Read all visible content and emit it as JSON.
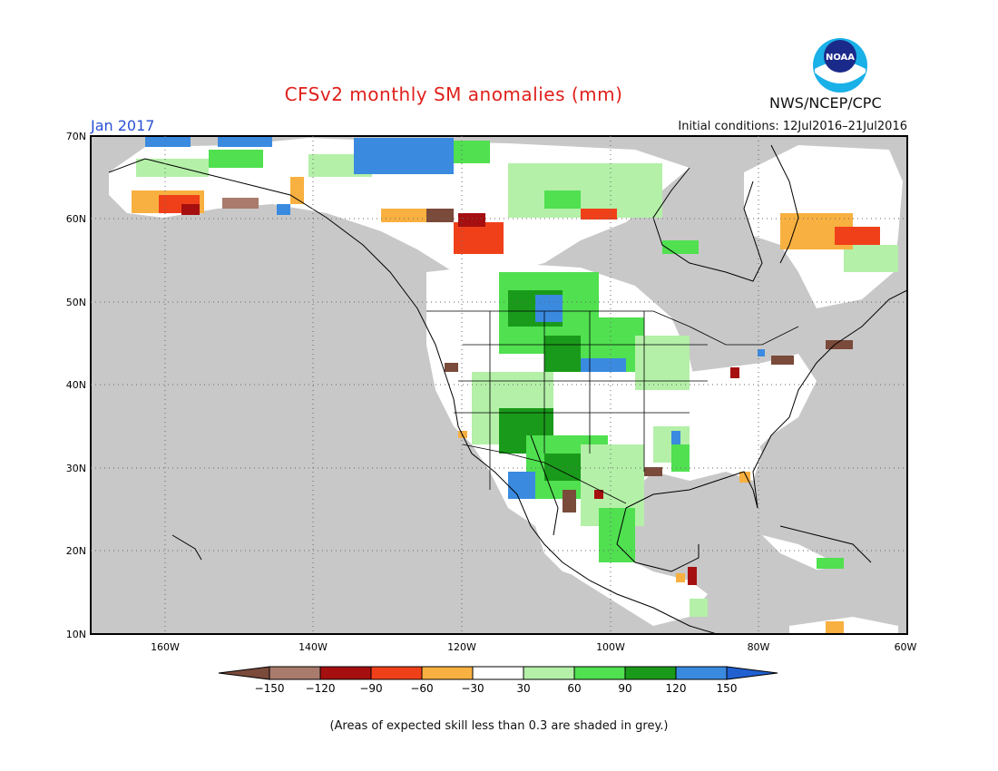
{
  "title": "CFSv2 monthly SM anomalies (mm)",
  "forecast_month": "Jan 2017",
  "initial_conditions": "Initial conditions: 12Jul2016–21Jul2016",
  "agency": "NWS/NCEP/CPC",
  "logo_text": "NOAA",
  "footnote": "(Areas of expected skill less than 0.3 are shaded in grey.)",
  "map": {
    "lat_labels": [
      "70N",
      "60N",
      "50N",
      "40N",
      "30N",
      "20N",
      "10N"
    ],
    "lon_labels": [
      "160W",
      "140W",
      "120W",
      "100W",
      "80W",
      "60W"
    ],
    "colors": {
      "ocean_skill_grey": "#c8c8c8",
      "land_white": "#ffffff",
      "outline": "#000000"
    }
  },
  "colorbar": {
    "ticks": [
      "−150",
      "−120",
      "−90",
      "−60",
      "−30",
      "30",
      "60",
      "90",
      "120",
      "150"
    ],
    "colors": [
      "#7a4a3a",
      "#a97b6c",
      "#a50f0f",
      "#f0401a",
      "#f8b040",
      "#ffffff",
      "#b4f0a8",
      "#50e050",
      "#1a9a1a",
      "#3a8ae0",
      "#2060d0"
    ]
  }
}
